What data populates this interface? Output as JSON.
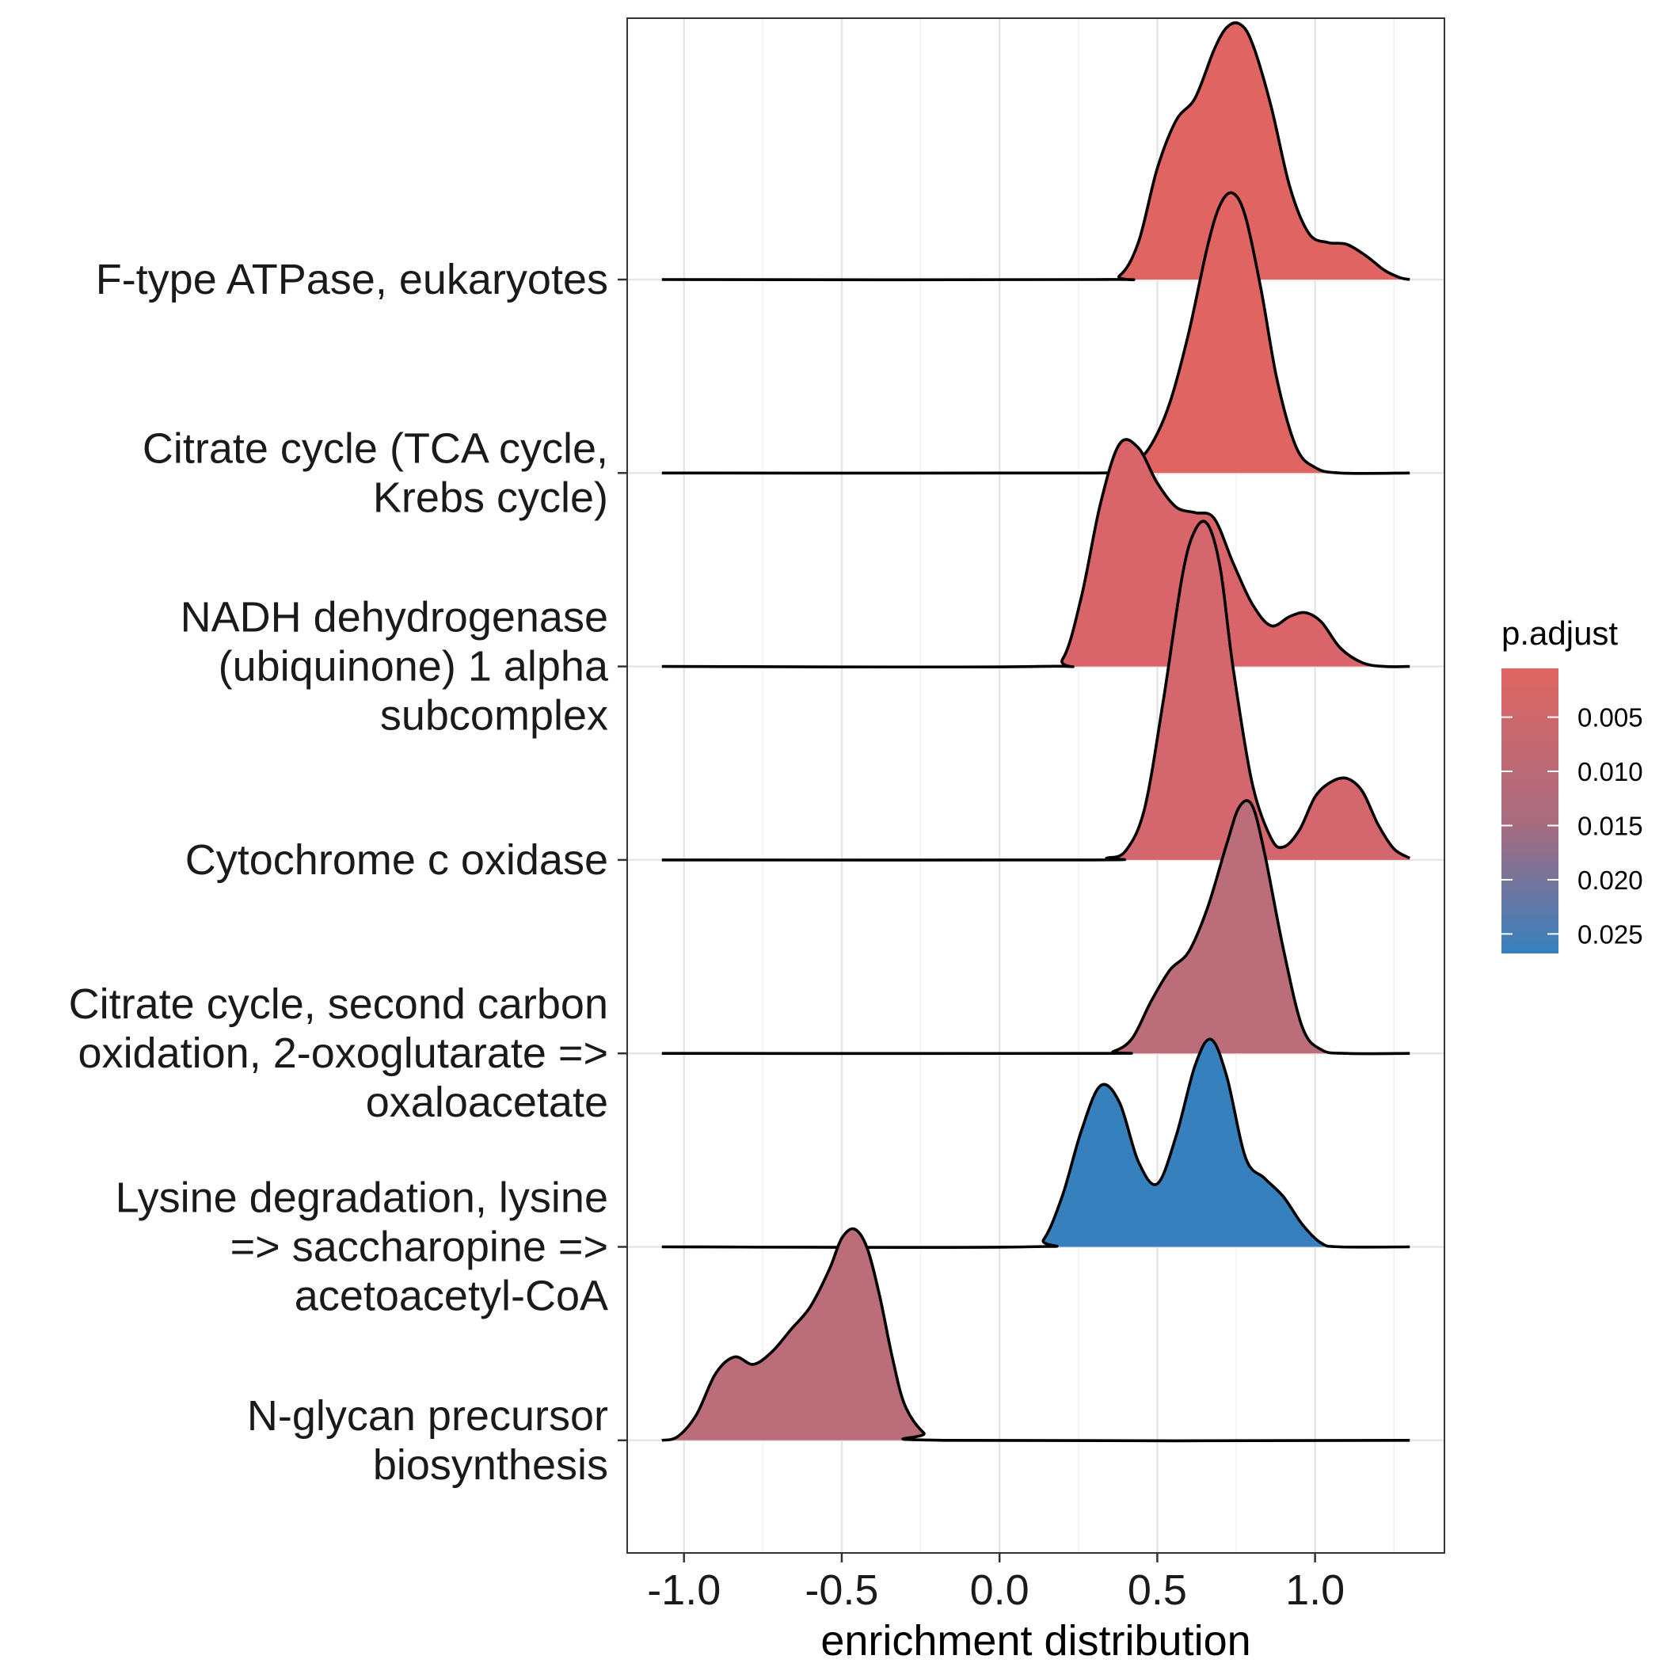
{
  "chart_data": {
    "type": "ridgeline",
    "title": "",
    "xlabel": "enrichment distribution",
    "ylabel": "",
    "xlim": [
      -1.18,
      1.41
    ],
    "x_ticks": [
      -1.0,
      -0.5,
      0.0,
      0.5,
      1.0
    ],
    "x_tick_labels": [
      "-1.0",
      "-0.5",
      "0.0",
      "0.5",
      "1.0"
    ],
    "x_range_curves": [
      -1.07,
      1.3
    ],
    "grid": true,
    "legend": {
      "title": "p.adjust",
      "position": "right",
      "type": "colorbar",
      "range": [
        0.0005,
        0.0268
      ],
      "ticks": [
        0.005,
        0.01,
        0.015,
        0.02,
        0.025
      ],
      "tick_labels": [
        "0.005",
        "0.010",
        "0.015",
        "0.020",
        "0.025"
      ],
      "color_low": "#E06562",
      "color_high": "#3680BD"
    },
    "categories": [
      "F-type ATPase, eukaryotes",
      "Citrate cycle (TCA cycle,\nKrebs cycle)",
      "NADH dehydrogenase\n(ubiquinone) 1 alpha\nsubcomplex",
      "Cytochrome c oxidase",
      "Citrate cycle, second carbon\noxidation, 2-oxoglutarate =>\noxaloacetate",
      "Lysine degradation, lysine\n=> saccharopine =>\nacetoacetyl-CoA",
      "N-glycan precursor\nbiosynthesis"
    ],
    "series": [
      {
        "name": "F-type ATPase, eukaryotes",
        "p_adjust": 0.0006,
        "fill": "#E06562",
        "density": [
          [
            -1.07,
            0
          ],
          [
            0.3,
            0
          ],
          [
            0.38,
            0.02
          ],
          [
            0.44,
            0.2
          ],
          [
            0.5,
            0.6
          ],
          [
            0.56,
            0.86
          ],
          [
            0.62,
            0.98
          ],
          [
            0.68,
            1.24
          ],
          [
            0.72,
            1.36
          ],
          [
            0.76,
            1.38
          ],
          [
            0.8,
            1.28
          ],
          [
            0.86,
            0.94
          ],
          [
            0.92,
            0.5
          ],
          [
            0.98,
            0.25
          ],
          [
            1.04,
            0.2
          ],
          [
            1.1,
            0.19
          ],
          [
            1.16,
            0.13
          ],
          [
            1.22,
            0.05
          ],
          [
            1.27,
            0.01
          ],
          [
            1.3,
            0
          ]
        ]
      },
      {
        "name": "Citrate cycle (TCA cycle, Krebs cycle)",
        "p_adjust": 0.0006,
        "fill": "#E06562",
        "density": [
          [
            -1.07,
            0
          ],
          [
            0.3,
            0
          ],
          [
            0.36,
            0.01
          ],
          [
            0.42,
            0.04
          ],
          [
            0.48,
            0.15
          ],
          [
            0.54,
            0.38
          ],
          [
            0.6,
            0.76
          ],
          [
            0.66,
            1.23
          ],
          [
            0.7,
            1.45
          ],
          [
            0.74,
            1.51
          ],
          [
            0.78,
            1.38
          ],
          [
            0.83,
            0.98
          ],
          [
            0.88,
            0.5
          ],
          [
            0.94,
            0.14
          ],
          [
            1.0,
            0.03
          ],
          [
            1.08,
            0
          ],
          [
            1.3,
            0
          ]
        ]
      },
      {
        "name": "NADH dehydrogenase (ubiquinone) 1 alpha subcomplex",
        "p_adjust": 0.0025,
        "fill": "#D9656A",
        "density": [
          [
            -1.07,
            0
          ],
          [
            0.12,
            0
          ],
          [
            0.2,
            0.04
          ],
          [
            0.26,
            0.38
          ],
          [
            0.32,
            0.88
          ],
          [
            0.38,
            1.2
          ],
          [
            0.44,
            1.18
          ],
          [
            0.5,
            0.99
          ],
          [
            0.56,
            0.86
          ],
          [
            0.62,
            0.83
          ],
          [
            0.68,
            0.8
          ],
          [
            0.74,
            0.56
          ],
          [
            0.8,
            0.34
          ],
          [
            0.86,
            0.22
          ],
          [
            0.92,
            0.27
          ],
          [
            0.97,
            0.29
          ],
          [
            1.02,
            0.24
          ],
          [
            1.08,
            0.1
          ],
          [
            1.15,
            0.02
          ],
          [
            1.22,
            0
          ],
          [
            1.3,
            0
          ]
        ]
      },
      {
        "name": "Cytochrome c oxidase",
        "p_adjust": 0.0042,
        "fill": "#D4666D",
        "density": [
          [
            -1.07,
            0
          ],
          [
            0.28,
            0
          ],
          [
            0.34,
            0.01
          ],
          [
            0.4,
            0.05
          ],
          [
            0.46,
            0.28
          ],
          [
            0.52,
            0.87
          ],
          [
            0.58,
            1.54
          ],
          [
            0.62,
            1.78
          ],
          [
            0.66,
            1.81
          ],
          [
            0.7,
            1.57
          ],
          [
            0.74,
            1.04
          ],
          [
            0.8,
            0.42
          ],
          [
            0.86,
            0.12
          ],
          [
            0.9,
            0.07
          ],
          [
            0.95,
            0.16
          ],
          [
            1.0,
            0.34
          ],
          [
            1.05,
            0.42
          ],
          [
            1.1,
            0.44
          ],
          [
            1.15,
            0.37
          ],
          [
            1.2,
            0.19
          ],
          [
            1.25,
            0.06
          ],
          [
            1.3,
            0.01
          ]
        ]
      },
      {
        "name": "Citrate cycle, second carbon oxidation, 2-oxoglutarate => oxaloacetate",
        "p_adjust": 0.0108,
        "fill": "#BB6E7A",
        "density": [
          [
            -1.07,
            0
          ],
          [
            0.3,
            0
          ],
          [
            0.36,
            0.01
          ],
          [
            0.42,
            0.08
          ],
          [
            0.48,
            0.28
          ],
          [
            0.54,
            0.45
          ],
          [
            0.6,
            0.55
          ],
          [
            0.66,
            0.79
          ],
          [
            0.72,
            1.13
          ],
          [
            0.76,
            1.33
          ],
          [
            0.8,
            1.34
          ],
          [
            0.84,
            1.08
          ],
          [
            0.9,
            0.56
          ],
          [
            0.96,
            0.14
          ],
          [
            1.02,
            0.02
          ],
          [
            1.1,
            0
          ],
          [
            1.3,
            0
          ]
        ]
      },
      {
        "name": "Lysine degradation, lysine => saccharopine => acetoacetyl-CoA",
        "p_adjust": 0.0266,
        "fill": "#3680BD",
        "density": [
          [
            -1.07,
            0
          ],
          [
            0.08,
            0
          ],
          [
            0.14,
            0.04
          ],
          [
            0.2,
            0.28
          ],
          [
            0.26,
            0.63
          ],
          [
            0.32,
            0.87
          ],
          [
            0.38,
            0.78
          ],
          [
            0.44,
            0.46
          ],
          [
            0.5,
            0.34
          ],
          [
            0.56,
            0.6
          ],
          [
            0.62,
            0.98
          ],
          [
            0.67,
            1.12
          ],
          [
            0.72,
            0.92
          ],
          [
            0.78,
            0.48
          ],
          [
            0.84,
            0.37
          ],
          [
            0.9,
            0.27
          ],
          [
            0.96,
            0.12
          ],
          [
            1.02,
            0.02
          ],
          [
            1.08,
            0
          ],
          [
            1.3,
            0
          ]
        ]
      },
      {
        "name": "N-glycan precursor biosynthesis",
        "p_adjust": 0.0108,
        "fill": "#BB6E7A",
        "density": [
          [
            -1.07,
            0
          ],
          [
            -1.02,
            0.02
          ],
          [
            -0.96,
            0.14
          ],
          [
            -0.9,
            0.36
          ],
          [
            -0.84,
            0.45
          ],
          [
            -0.78,
            0.41
          ],
          [
            -0.72,
            0.48
          ],
          [
            -0.66,
            0.6
          ],
          [
            -0.6,
            0.72
          ],
          [
            -0.54,
            0.92
          ],
          [
            -0.5,
            1.09
          ],
          [
            -0.46,
            1.14
          ],
          [
            -0.42,
            1.04
          ],
          [
            -0.38,
            0.78
          ],
          [
            -0.34,
            0.45
          ],
          [
            -0.3,
            0.19
          ],
          [
            -0.24,
            0.04
          ],
          [
            -0.18,
            0
          ],
          [
            1.3,
            0
          ]
        ]
      }
    ]
  }
}
